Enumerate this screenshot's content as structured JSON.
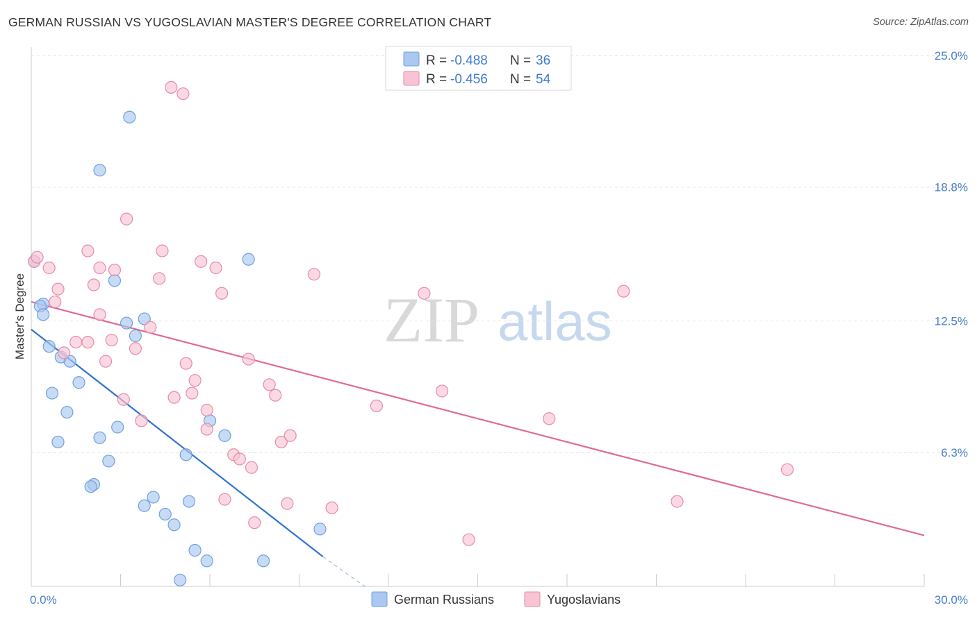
{
  "title": "GERMAN RUSSIAN VS YUGOSLAVIAN MASTER'S DEGREE CORRELATION CHART",
  "source": "Source: ZipAtlas.com",
  "watermark": {
    "zip": "ZIP",
    "atlas": "atlas"
  },
  "legend": {
    "rows": [
      {
        "r_label": "R =",
        "r_value": "-0.488",
        "n_label": "N =",
        "n_value": "36",
        "color": "#aac8f0",
        "border": "#6fa0e0"
      },
      {
        "r_label": "R =",
        "r_value": "-0.456",
        "n_label": "N =",
        "n_value": "54",
        "color": "#f8c4d4",
        "border": "#e88aa8"
      }
    ]
  },
  "bottom_legend": [
    "German Russians",
    "Yugoslavians"
  ],
  "chart_data": {
    "type": "scatter",
    "title": "GERMAN RUSSIAN VS YUGOSLAVIAN MASTER'S DEGREE CORRELATION CHART",
    "xlabel": "",
    "ylabel": "Master's Degree",
    "xlim": [
      0,
      30
    ],
    "ylim": [
      0,
      25.0
    ],
    "x_tick_labels": [
      "0.0%",
      "30.0%"
    ],
    "y_tick_labels": [
      "6.3%",
      "12.5%",
      "18.8%",
      "25.0%"
    ],
    "y_tick_values": [
      6.3,
      12.5,
      18.8,
      25.0
    ],
    "grid": true,
    "legend_position": "top-center",
    "series": [
      {
        "name": "German Russians",
        "color": "#6fa0e0",
        "fill": "#aac8f0",
        "points": [
          [
            0.1,
            15.3
          ],
          [
            0.4,
            13.3
          ],
          [
            0.3,
            13.2
          ],
          [
            0.4,
            12.8
          ],
          [
            0.6,
            11.3
          ],
          [
            1.0,
            10.8
          ],
          [
            1.3,
            10.6
          ],
          [
            0.7,
            9.1
          ],
          [
            1.6,
            9.6
          ],
          [
            1.2,
            8.2
          ],
          [
            0.9,
            6.8
          ],
          [
            2.8,
            14.4
          ],
          [
            2.3,
            19.6
          ],
          [
            3.2,
            12.4
          ],
          [
            3.8,
            12.6
          ],
          [
            3.5,
            11.8
          ],
          [
            3.3,
            22.1
          ],
          [
            2.9,
            7.5
          ],
          [
            2.3,
            7.0
          ],
          [
            2.6,
            5.9
          ],
          [
            2.1,
            4.8
          ],
          [
            2.0,
            4.7
          ],
          [
            3.8,
            3.8
          ],
          [
            4.1,
            4.2
          ],
          [
            4.5,
            3.4
          ],
          [
            4.8,
            2.9
          ],
          [
            5.2,
            6.2
          ],
          [
            5.3,
            4.0
          ],
          [
            5.5,
            1.7
          ],
          [
            5.9,
            1.2
          ],
          [
            6.0,
            7.8
          ],
          [
            6.5,
            7.1
          ],
          [
            7.3,
            15.4
          ],
          [
            7.8,
            1.2
          ],
          [
            9.7,
            2.7
          ],
          [
            5.0,
            0.3
          ]
        ],
        "trend": {
          "x": [
            0.0,
            9.8
          ],
          "y": [
            12.1,
            1.4
          ]
        },
        "trend_dashed": {
          "x": [
            9.8,
            11.3
          ],
          "y": [
            1.4,
            -0.1
          ]
        }
      },
      {
        "name": "Yugoslavians",
        "color": "#e88aa8",
        "fill": "#f8c4d4",
        "points": [
          [
            0.1,
            15.3
          ],
          [
            0.2,
            15.5
          ],
          [
            0.6,
            15.0
          ],
          [
            0.9,
            14.0
          ],
          [
            0.8,
            13.4
          ],
          [
            1.1,
            11.0
          ],
          [
            1.5,
            11.5
          ],
          [
            1.9,
            15.8
          ],
          [
            2.1,
            14.2
          ],
          [
            1.9,
            11.5
          ],
          [
            2.3,
            15.0
          ],
          [
            2.3,
            12.8
          ],
          [
            2.5,
            10.6
          ],
          [
            2.8,
            14.9
          ],
          [
            2.7,
            11.6
          ],
          [
            3.1,
            8.8
          ],
          [
            3.2,
            17.3
          ],
          [
            3.5,
            11.2
          ],
          [
            3.7,
            7.8
          ],
          [
            4.0,
            12.2
          ],
          [
            4.3,
            14.5
          ],
          [
            4.4,
            15.8
          ],
          [
            4.7,
            23.5
          ],
          [
            5.1,
            23.2
          ],
          [
            4.8,
            8.9
          ],
          [
            5.2,
            10.5
          ],
          [
            5.5,
            9.7
          ],
          [
            5.4,
            9.1
          ],
          [
            5.7,
            15.3
          ],
          [
            5.9,
            8.3
          ],
          [
            5.9,
            7.4
          ],
          [
            6.2,
            15.0
          ],
          [
            6.4,
            13.8
          ],
          [
            6.5,
            4.1
          ],
          [
            6.8,
            6.2
          ],
          [
            7.0,
            6.0
          ],
          [
            7.4,
            5.6
          ],
          [
            7.5,
            3.0
          ],
          [
            7.3,
            10.7
          ],
          [
            8.0,
            9.5
          ],
          [
            8.2,
            9.0
          ],
          [
            8.4,
            6.8
          ],
          [
            8.7,
            7.1
          ],
          [
            8.6,
            3.9
          ],
          [
            9.5,
            14.7
          ],
          [
            10.1,
            3.7
          ],
          [
            11.6,
            8.5
          ],
          [
            13.2,
            13.8
          ],
          [
            13.8,
            9.2
          ],
          [
            14.7,
            2.2
          ],
          [
            17.4,
            7.9
          ],
          [
            19.9,
            13.9
          ],
          [
            21.7,
            4.0
          ],
          [
            25.4,
            5.5
          ]
        ],
        "trend": {
          "x": [
            0.0,
            30.0
          ],
          "y": [
            13.4,
            2.4
          ]
        }
      }
    ]
  }
}
